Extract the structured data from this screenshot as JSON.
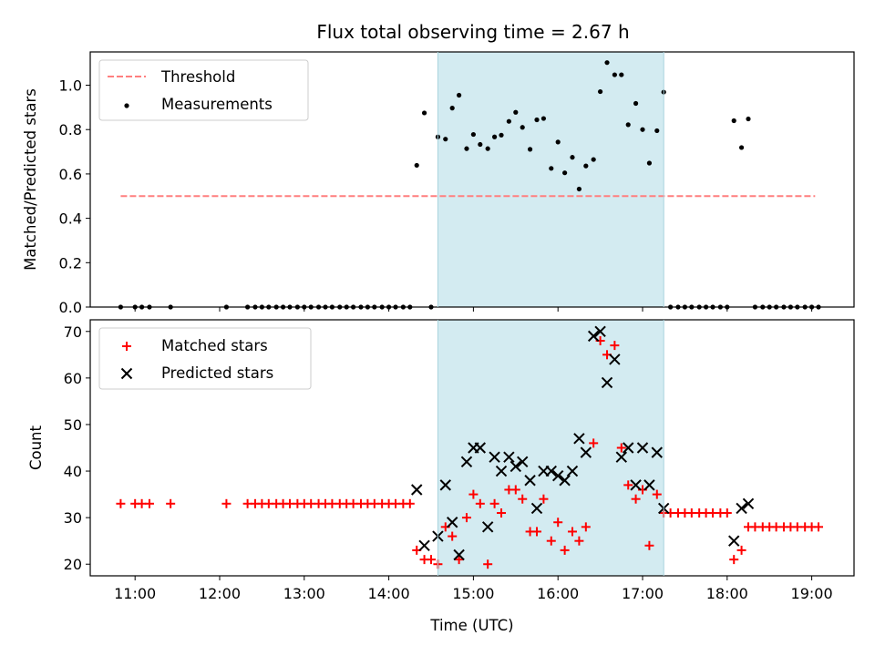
{
  "chart_data": {
    "title": "Flux total observing time = 2.67 h",
    "xlabel": "Time (UTC)",
    "xlim": [
      10.47,
      19.5
    ],
    "xticks": [
      11,
      12,
      13,
      14,
      15,
      16,
      17,
      18,
      19
    ],
    "xtick_labels": [
      "11:00",
      "12:00",
      "13:00",
      "14:00",
      "15:00",
      "16:00",
      "17:00",
      "18:00",
      "19:00"
    ],
    "highlight_span": {
      "x0": 14.58,
      "x1": 17.25,
      "color": "#d3ebf1"
    },
    "panels": [
      {
        "type": "scatter",
        "ylabel": "Matched/Predicted stars",
        "ylim": [
          0,
          1.15
        ],
        "yticks": [
          0.0,
          0.2,
          0.4,
          0.6,
          0.8,
          1.0
        ],
        "ytick_labels": [
          "0.0",
          "0.2",
          "0.4",
          "0.6",
          "0.8",
          "1.0"
        ],
        "legend_position": "top-left",
        "threshold": {
          "name": "Threshold",
          "value": 0.5,
          "x0": 10.83,
          "x1": 19.04,
          "color": "#ff7f7f",
          "style": "dashed"
        },
        "series": [
          {
            "name": "Measurements",
            "color": "#000000",
            "marker": "dot",
            "points": [
              [
                10.83,
                0
              ],
              [
                11.0,
                0
              ],
              [
                11.08,
                0
              ],
              [
                11.17,
                0
              ],
              [
                11.42,
                0
              ],
              [
                12.08,
                0
              ],
              [
                12.33,
                0
              ],
              [
                12.42,
                0
              ],
              [
                12.5,
                0
              ],
              [
                12.58,
                0
              ],
              [
                12.67,
                0
              ],
              [
                12.75,
                0
              ],
              [
                12.83,
                0
              ],
              [
                12.92,
                0
              ],
              [
                13.0,
                0
              ],
              [
                13.08,
                0
              ],
              [
                13.17,
                0
              ],
              [
                13.25,
                0
              ],
              [
                13.33,
                0
              ],
              [
                13.42,
                0
              ],
              [
                13.5,
                0
              ],
              [
                13.58,
                0
              ],
              [
                13.67,
                0
              ],
              [
                13.75,
                0
              ],
              [
                13.83,
                0
              ],
              [
                13.92,
                0
              ],
              [
                14.0,
                0
              ],
              [
                14.08,
                0
              ],
              [
                14.17,
                0
              ],
              [
                14.25,
                0
              ],
              [
                14.33,
                0.639
              ],
              [
                14.42,
                0.875
              ],
              [
                14.5,
                0
              ],
              [
                14.58,
                0.767
              ],
              [
                14.67,
                0.757
              ],
              [
                14.75,
                0.897
              ],
              [
                14.83,
                0.955
              ],
              [
                14.92,
                0.714
              ],
              [
                15.0,
                0.778
              ],
              [
                15.08,
                0.733
              ],
              [
                15.17,
                0.714
              ],
              [
                15.25,
                0.767
              ],
              [
                15.33,
                0.775
              ],
              [
                15.42,
                0.837
              ],
              [
                15.5,
                0.878
              ],
              [
                15.58,
                0.81
              ],
              [
                15.67,
                0.711
              ],
              [
                15.75,
                0.844
              ],
              [
                15.83,
                0.85
              ],
              [
                15.92,
                0.625
              ],
              [
                16.0,
                0.744
              ],
              [
                16.08,
                0.605
              ],
              [
                16.17,
                0.675
              ],
              [
                16.25,
                0.532
              ],
              [
                16.33,
                0.636
              ],
              [
                16.42,
                0.665
              ],
              [
                16.5,
                0.971
              ],
              [
                16.58,
                1.102
              ],
              [
                16.67,
                1.047
              ],
              [
                16.75,
                1.047
              ],
              [
                16.83,
                0.822
              ],
              [
                16.92,
                0.918
              ],
              [
                17.0,
                0.8
              ],
              [
                17.08,
                0.649
              ],
              [
                17.17,
                0.795
              ],
              [
                17.25,
                0.969
              ],
              [
                17.33,
                0
              ],
              [
                17.42,
                0
              ],
              [
                17.5,
                0
              ],
              [
                17.58,
                0
              ],
              [
                17.67,
                0
              ],
              [
                17.75,
                0
              ],
              [
                17.83,
                0
              ],
              [
                17.92,
                0
              ],
              [
                18.0,
                0
              ],
              [
                18.08,
                0.84
              ],
              [
                18.17,
                0.719
              ],
              [
                18.25,
                0.848
              ],
              [
                18.33,
                0
              ],
              [
                18.42,
                0
              ],
              [
                18.5,
                0
              ],
              [
                18.58,
                0
              ],
              [
                18.67,
                0
              ],
              [
                18.75,
                0
              ],
              [
                18.83,
                0
              ],
              [
                18.92,
                0
              ],
              [
                19.0,
                0
              ],
              [
                19.08,
                0
              ]
            ]
          }
        ]
      },
      {
        "type": "scatter",
        "ylabel": "Count",
        "ylim": [
          17.5,
          72.5
        ],
        "yticks": [
          20,
          30,
          40,
          50,
          60,
          70
        ],
        "ytick_labels": [
          "20",
          "30",
          "40",
          "50",
          "60",
          "70"
        ],
        "legend_position": "top-left",
        "series": [
          {
            "name": "Matched stars",
            "color": "#ff0000",
            "marker": "plus",
            "points": [
              [
                10.83,
                33
              ],
              [
                11.0,
                33
              ],
              [
                11.08,
                33
              ],
              [
                11.17,
                33
              ],
              [
                11.42,
                33
              ],
              [
                12.08,
                33
              ],
              [
                12.33,
                33
              ],
              [
                12.42,
                33
              ],
              [
                12.5,
                33
              ],
              [
                12.58,
                33
              ],
              [
                12.67,
                33
              ],
              [
                12.75,
                33
              ],
              [
                12.83,
                33
              ],
              [
                12.92,
                33
              ],
              [
                13.0,
                33
              ],
              [
                13.08,
                33
              ],
              [
                13.17,
                33
              ],
              [
                13.25,
                33
              ],
              [
                13.33,
                33
              ],
              [
                13.42,
                33
              ],
              [
                13.5,
                33
              ],
              [
                13.58,
                33
              ],
              [
                13.67,
                33
              ],
              [
                13.75,
                33
              ],
              [
                13.83,
                33
              ],
              [
                13.92,
                33
              ],
              [
                14.0,
                33
              ],
              [
                14.08,
                33
              ],
              [
                14.17,
                33
              ],
              [
                14.25,
                33
              ],
              [
                14.33,
                23
              ],
              [
                14.42,
                21
              ],
              [
                14.5,
                21
              ],
              [
                14.58,
                20
              ],
              [
                14.67,
                28
              ],
              [
                14.75,
                26
              ],
              [
                14.83,
                21
              ],
              [
                14.92,
                30
              ],
              [
                15.0,
                35
              ],
              [
                15.08,
                33
              ],
              [
                15.17,
                20
              ],
              [
                15.25,
                33
              ],
              [
                15.33,
                31
              ],
              [
                15.42,
                36
              ],
              [
                15.5,
                36
              ],
              [
                15.58,
                34
              ],
              [
                15.67,
                27
              ],
              [
                15.75,
                27
              ],
              [
                15.83,
                34
              ],
              [
                15.92,
                25
              ],
              [
                16.0,
                29
              ],
              [
                16.08,
                23
              ],
              [
                16.17,
                27
              ],
              [
                16.25,
                25
              ],
              [
                16.33,
                28
              ],
              [
                16.42,
                46
              ],
              [
                16.5,
                68
              ],
              [
                16.58,
                65
              ],
              [
                16.67,
                67
              ],
              [
                16.75,
                45
              ],
              [
                16.83,
                37
              ],
              [
                16.92,
                34
              ],
              [
                17.0,
                36
              ],
              [
                17.08,
                24
              ],
              [
                17.17,
                35
              ],
              [
                17.25,
                31
              ],
              [
                17.33,
                31
              ],
              [
                17.42,
                31
              ],
              [
                17.5,
                31
              ],
              [
                17.58,
                31
              ],
              [
                17.67,
                31
              ],
              [
                17.75,
                31
              ],
              [
                17.83,
                31
              ],
              [
                17.92,
                31
              ],
              [
                18.0,
                31
              ],
              [
                18.08,
                21
              ],
              [
                18.17,
                23
              ],
              [
                18.25,
                28
              ],
              [
                18.33,
                28
              ],
              [
                18.42,
                28
              ],
              [
                18.5,
                28
              ],
              [
                18.58,
                28
              ],
              [
                18.67,
                28
              ],
              [
                18.75,
                28
              ],
              [
                18.83,
                28
              ],
              [
                18.92,
                28
              ],
              [
                19.0,
                28
              ],
              [
                19.08,
                28
              ]
            ]
          },
          {
            "name": "Predicted stars",
            "color": "#000000",
            "marker": "x",
            "points": [
              [
                14.33,
                36
              ],
              [
                14.42,
                24
              ],
              [
                14.58,
                26
              ],
              [
                14.67,
                37
              ],
              [
                14.75,
                29
              ],
              [
                14.83,
                22
              ],
              [
                14.92,
                42
              ],
              [
                15.0,
                45
              ],
              [
                15.08,
                45
              ],
              [
                15.17,
                28
              ],
              [
                15.25,
                43
              ],
              [
                15.33,
                40
              ],
              [
                15.42,
                43
              ],
              [
                15.5,
                41
              ],
              [
                15.58,
                42
              ],
              [
                15.67,
                38
              ],
              [
                15.75,
                32
              ],
              [
                15.83,
                40
              ],
              [
                15.92,
                40
              ],
              [
                16.0,
                39
              ],
              [
                16.08,
                38
              ],
              [
                16.17,
                40
              ],
              [
                16.25,
                47
              ],
              [
                16.33,
                44
              ],
              [
                16.42,
                69
              ],
              [
                16.5,
                70
              ],
              [
                16.58,
                59
              ],
              [
                16.67,
                64
              ],
              [
                16.75,
                43
              ],
              [
                16.83,
                45
              ],
              [
                16.92,
                37
              ],
              [
                17.0,
                45
              ],
              [
                17.08,
                37
              ],
              [
                17.17,
                44
              ],
              [
                17.25,
                32
              ],
              [
                18.08,
                25
              ],
              [
                18.17,
                32
              ],
              [
                18.25,
                33
              ]
            ]
          }
        ]
      }
    ]
  }
}
